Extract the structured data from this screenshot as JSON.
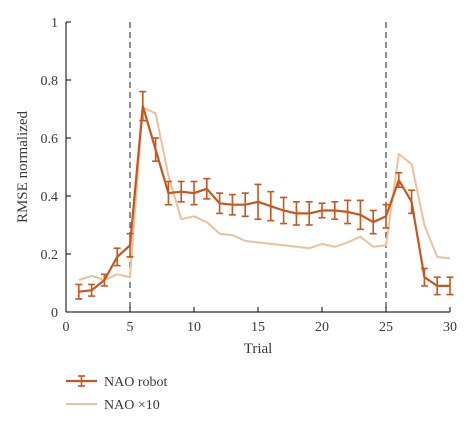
{
  "chart_data": {
    "type": "line",
    "xlabel": "Trial",
    "ylabel": "RMSE normalized",
    "xlim": [
      0,
      30
    ],
    "ylim": [
      0,
      1
    ],
    "xticks": [
      0,
      5,
      10,
      15,
      20,
      25,
      30
    ],
    "yticks": [
      0,
      0.2,
      0.4,
      0.6,
      0.8,
      1
    ],
    "xtick_labels": [
      "0",
      "5",
      "10",
      "15",
      "20",
      "25",
      "30"
    ],
    "ytick_labels": [
      "0",
      "0.2",
      "0.4",
      "0.6",
      "0.8",
      "1"
    ],
    "grid": false,
    "legend_position": "bottom-left, below plot",
    "vlines": [
      5,
      25
    ],
    "series": [
      {
        "name": "NAO robot",
        "color": "#c8561e",
        "error_bars": true,
        "x": [
          1,
          2,
          3,
          4,
          5,
          6,
          7,
          8,
          9,
          10,
          11,
          12,
          13,
          14,
          15,
          16,
          17,
          18,
          19,
          20,
          21,
          22,
          23,
          24,
          25,
          26,
          27,
          28,
          29,
          30
        ],
        "y": [
          0.07,
          0.075,
          0.11,
          0.19,
          0.23,
          0.71,
          0.56,
          0.41,
          0.415,
          0.41,
          0.425,
          0.375,
          0.37,
          0.37,
          0.38,
          0.365,
          0.35,
          0.34,
          0.34,
          0.35,
          0.35,
          0.345,
          0.335,
          0.31,
          0.33,
          0.455,
          0.38,
          0.12,
          0.09,
          0.09
        ],
        "err": [
          0.025,
          0.02,
          0.02,
          0.03,
          0.04,
          0.05,
          0.04,
          0.04,
          0.035,
          0.04,
          0.035,
          0.035,
          0.035,
          0.04,
          0.06,
          0.05,
          0.045,
          0.04,
          0.04,
          0.025,
          0.03,
          0.04,
          0.05,
          0.04,
          0.04,
          0.025,
          0.04,
          0.03,
          0.03,
          0.03
        ]
      },
      {
        "name": "NAO ×10",
        "color": "#ecc09c",
        "error_bars": false,
        "x": [
          1,
          2,
          3,
          4,
          5,
          6,
          7,
          8,
          9,
          10,
          11,
          12,
          13,
          14,
          15,
          16,
          17,
          18,
          19,
          20,
          21,
          22,
          23,
          24,
          25,
          26,
          27,
          28,
          29,
          30
        ],
        "y": [
          0.11,
          0.125,
          0.11,
          0.13,
          0.12,
          0.705,
          0.685,
          0.47,
          0.32,
          0.33,
          0.31,
          0.27,
          0.265,
          0.245,
          0.24,
          0.235,
          0.23,
          0.225,
          0.22,
          0.235,
          0.225,
          0.24,
          0.26,
          0.225,
          0.23,
          0.545,
          0.51,
          0.3,
          0.19,
          0.185
        ]
      }
    ]
  }
}
